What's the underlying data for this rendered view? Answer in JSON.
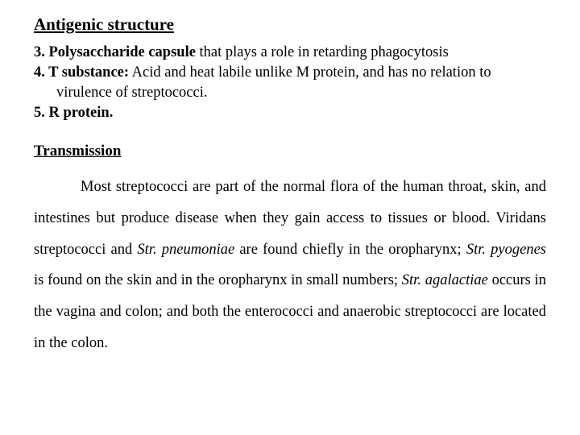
{
  "section1": {
    "title": "Antigenic structure",
    "item3_lead": "3. Polysaccharide capsule",
    "item3_rest": " that plays a role in retarding phagocytosis",
    "item4_lead": "4. T substance:",
    "item4_rest": " Acid and heat labile unlike M protein, and has no relation to",
    "item4_cont": "virulence of streptococci.",
    "item5": "5. R protein."
  },
  "section2": {
    "title": "Transmission",
    "p_a": "Most streptococci are part of the normal flora of the human throat, skin, and intestines but produce disease when they gain access to tissues or blood. Viridans streptococci and ",
    "p_b": "Str. pneumoniae",
    "p_c": " are found chiefly in the oropharynx; ",
    "p_d": "Str. pyogenes",
    "p_e": " is found on the skin and in the oropharynx in small numbers; ",
    "p_f": "Str. agalactiae",
    "p_g": " occurs in the vagina and colon; and both the enterococci and anaerobic streptococci are located in the colon."
  }
}
